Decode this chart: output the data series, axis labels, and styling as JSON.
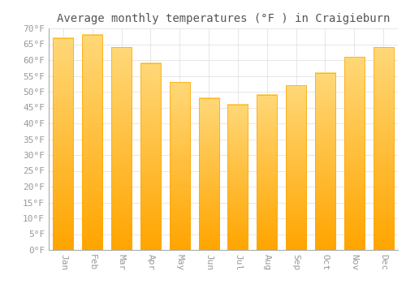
{
  "title": "Average monthly temperatures (°F ) in Craigieburn",
  "months": [
    "Jan",
    "Feb",
    "Mar",
    "Apr",
    "May",
    "Jun",
    "Jul",
    "Aug",
    "Sep",
    "Oct",
    "Nov",
    "Dec"
  ],
  "values": [
    67,
    68,
    64,
    59,
    53,
    48,
    46,
    49,
    52,
    56,
    61,
    64
  ],
  "bar_color_top": "#FFC125",
  "bar_color_bottom": "#FFA500",
  "background_color": "#FFFFFF",
  "grid_color": "#DDDDDD",
  "ylim": [
    0,
    70
  ],
  "yticks": [
    0,
    5,
    10,
    15,
    20,
    25,
    30,
    35,
    40,
    45,
    50,
    55,
    60,
    65,
    70
  ],
  "title_fontsize": 10,
  "tick_fontsize": 8,
  "tick_color": "#999999",
  "title_color": "#555555"
}
